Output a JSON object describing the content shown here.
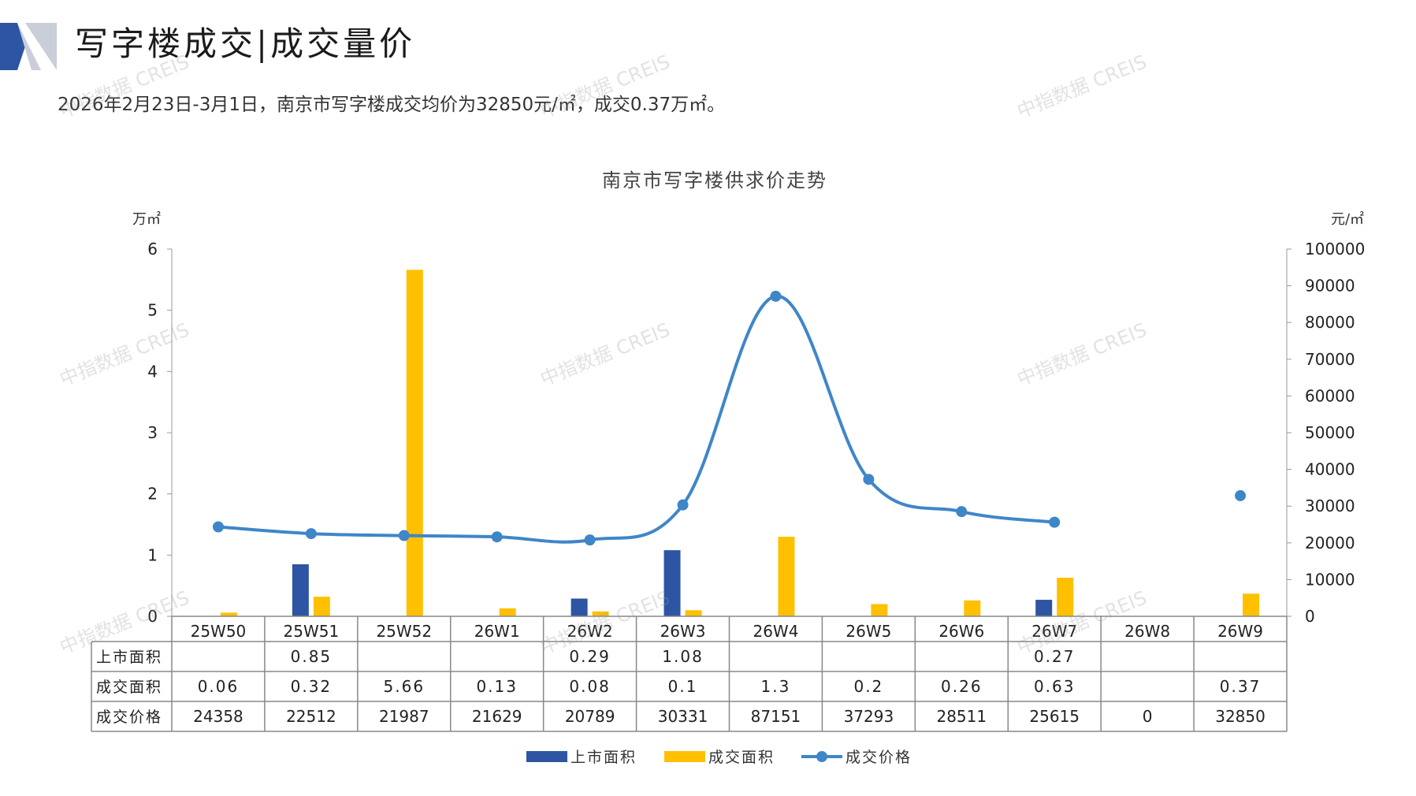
{
  "header": {
    "title": "写字楼成交|成交量价",
    "summary": "2026年2月23日-3月1日，南京市写字楼成交均价为32850元/㎡，成交0.37万㎡。"
  },
  "watermark": "中指数据 CREIS",
  "colors": {
    "supply": "#2E55A4",
    "deal": "#FFC000",
    "price": "#3F86C8",
    "accent_dark": "#2E55A4",
    "accent_light": "#C9CED8"
  },
  "chart_data": {
    "type": "bar",
    "title": "南京市写字楼供求价走势",
    "y_left_unit": "万㎡",
    "y_right_unit": "元/㎡",
    "y_left_ticks": [
      "0",
      "1",
      "2",
      "3",
      "4",
      "5",
      "6"
    ],
    "y_right_ticks": [
      "0",
      "10000",
      "20000",
      "30000",
      "40000",
      "50000",
      "60000",
      "70000",
      "80000",
      "90000",
      "100000"
    ],
    "ylim_left": [
      0,
      6
    ],
    "ylim_right": [
      0,
      100000
    ],
    "categories": [
      "25W50",
      "25W51",
      "25W52",
      "26W1",
      "26W2",
      "26W3",
      "26W4",
      "26W5",
      "26W6",
      "26W7",
      "26W8",
      "26W9"
    ],
    "series": [
      {
        "name": "上市面积",
        "kind": "bar",
        "axis": "left",
        "values": [
          null,
          0.85,
          null,
          null,
          0.29,
          1.08,
          null,
          null,
          null,
          0.27,
          null,
          null
        ],
        "labels": [
          "",
          "0.85",
          "",
          "",
          "0.29",
          "1.08",
          "",
          "",
          "",
          "0.27",
          "",
          ""
        ]
      },
      {
        "name": "成交面积",
        "kind": "bar",
        "axis": "left",
        "values": [
          0.06,
          0.32,
          5.66,
          0.13,
          0.08,
          0.1,
          1.3,
          0.2,
          0.26,
          0.63,
          null,
          0.37
        ],
        "labels": [
          "0.06",
          "0.32",
          "5.66",
          "0.13",
          "0.08",
          "0.1",
          "1.3",
          "0.2",
          "0.26",
          "0.63",
          "",
          "0.37"
        ]
      },
      {
        "name": "成交价格",
        "kind": "line",
        "axis": "right",
        "values": [
          24358,
          22512,
          21987,
          21629,
          20789,
          30331,
          87151,
          37293,
          28511,
          25615,
          0,
          32850
        ],
        "labels": [
          "24358",
          "22512",
          "21987",
          "21629",
          "20789",
          "30331",
          "87151",
          "37293",
          "28511",
          "25615",
          "0",
          "32850"
        ],
        "line_break_after": 9
      }
    ],
    "legend_position": "bottom-center"
  }
}
